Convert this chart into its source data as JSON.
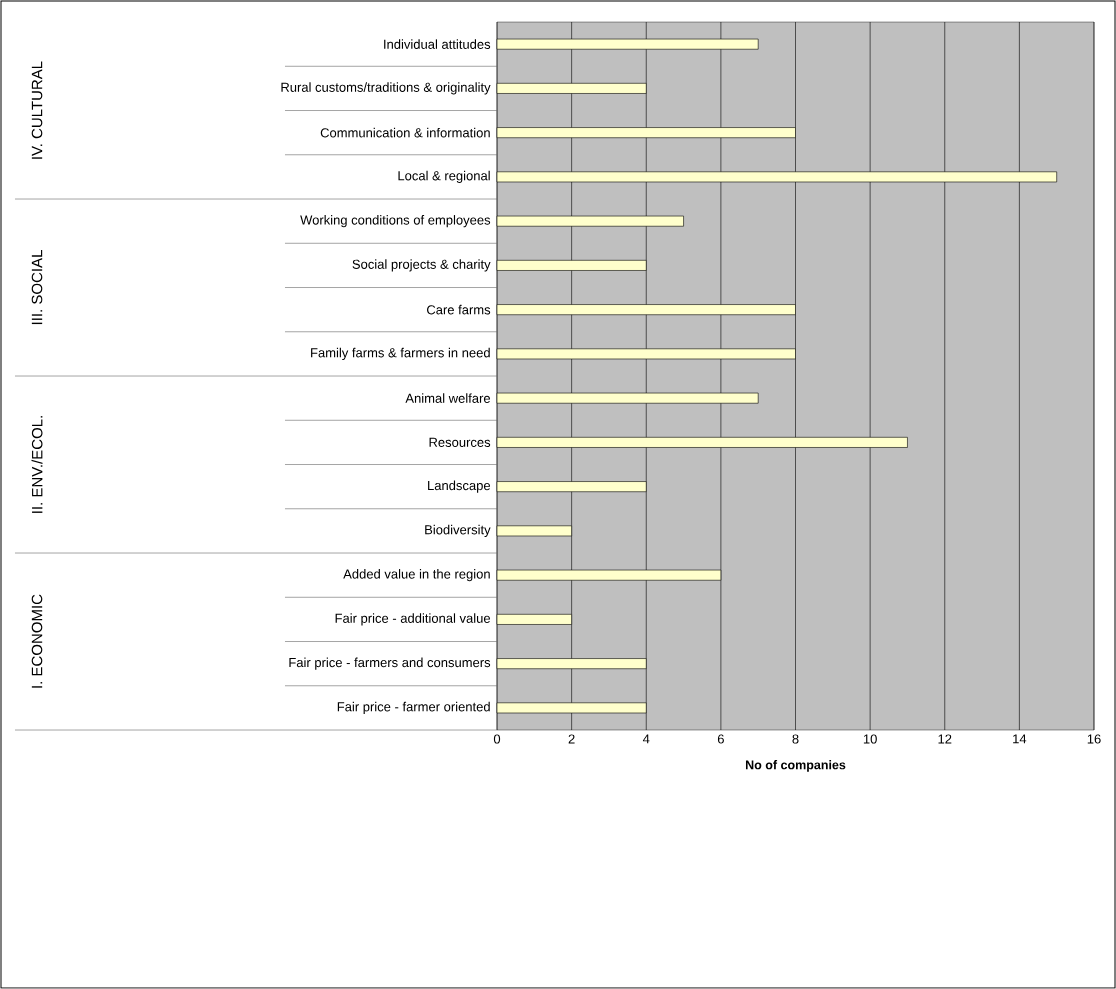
{
  "chart_data": {
    "type": "bar",
    "orientation": "horizontal",
    "xlabel": "No of companies",
    "categories": [
      "Individual attitudes",
      "Rural customs/traditions & originality",
      "Communication & information",
      "Local & regional",
      "Working conditions of employees",
      "Social projects & charity",
      "Care farms",
      "Family farms & farmers in need",
      "Animal welfare",
      "Resources",
      "Landscape",
      "Biodiversity",
      "Added value in the region",
      "Fair price - additional value",
      "Fair price - farmers and consumers",
      "Fair price - farmer oriented"
    ],
    "values": [
      7,
      4,
      8,
      15,
      5,
      4,
      8,
      8,
      7,
      11,
      4,
      2,
      6,
      2,
      4,
      4
    ],
    "color": "#ffffcc",
    "xlim": [
      0,
      16
    ],
    "xticks": [
      0,
      2,
      4,
      6,
      8,
      10,
      12,
      14,
      16
    ],
    "grid": "x",
    "annotations": [
      "IV. CULTURAL",
      "III. SOCIAL",
      "II. ENV./ECOL.",
      "I. ECONOMIC"
    ]
  }
}
